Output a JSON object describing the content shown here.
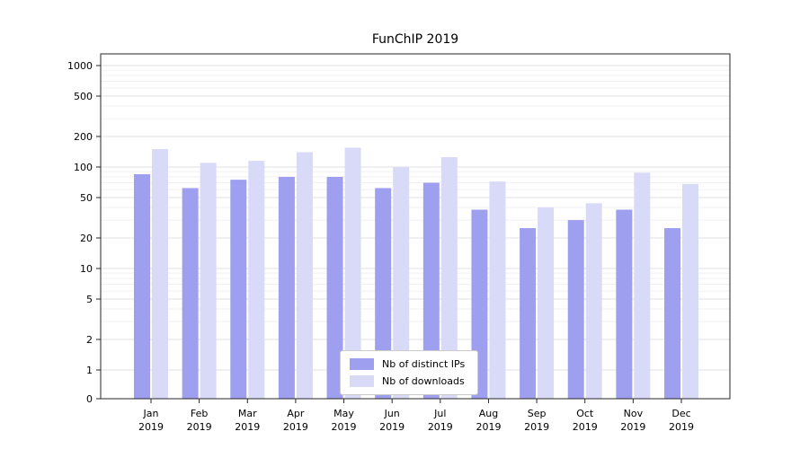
{
  "chart_data": {
    "type": "bar",
    "title": "FunChIP 2019",
    "yscale": "log",
    "grid": true,
    "legend_position": "lower center inside",
    "categories": [
      "Jan 2019",
      "Feb 2019",
      "Mar 2019",
      "Apr 2019",
      "May 2019",
      "Jun 2019",
      "Jul 2019",
      "Aug 2019",
      "Sep 2019",
      "Oct 2019",
      "Nov 2019",
      "Dec 2019"
    ],
    "series": [
      {
        "name": "Nb of distinct IPs",
        "color": "#9f9fef",
        "values": [
          85,
          62,
          75,
          80,
          80,
          62,
          70,
          38,
          25,
          30,
          38,
          25
        ]
      },
      {
        "name": "Nb of downloads",
        "color": "#d9d9f8",
        "values": [
          150,
          110,
          115,
          140,
          155,
          100,
          125,
          72,
          40,
          44,
          88,
          68
        ]
      }
    ],
    "y_ticks": [
      0,
      1,
      2,
      5,
      10,
      20,
      50,
      100,
      200,
      500,
      1000
    ],
    "ylim": [
      0,
      1000
    ],
    "xlabel": "",
    "ylabel": ""
  }
}
